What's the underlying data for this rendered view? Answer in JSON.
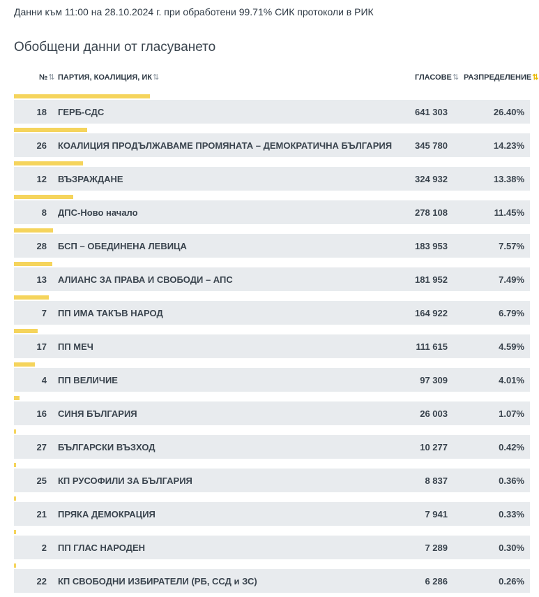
{
  "meta_text": "Данни към 11:00 на 28.10.2024 г. при обработени 99.71% СИК протоколи в РИК",
  "title": "Обобщени данни от гласуването",
  "headers": {
    "num": "№",
    "party": "ПАРТИЯ, КОАЛИЦИЯ, ИК",
    "votes": "ГЛАСОВЕ",
    "dist": "РАЗПРЕДЕЛЕНИЕ",
    "sort_icon": "⇅",
    "sort_active_icon": "⇅"
  },
  "bar_color": "#f5d45c",
  "rows": [
    {
      "num": "18",
      "party": "ГЕРБ-СДС",
      "votes": "641 303",
      "pct": "26.40%",
      "share": 0.264
    },
    {
      "num": "26",
      "party": "КОАЛИЦИЯ ПРОДЪЛЖАВАМЕ ПРОМЯНАТА – ДЕМОКРАТИЧНА БЪЛГАРИЯ",
      "votes": "345 780",
      "pct": "14.23%",
      "share": 0.1423
    },
    {
      "num": "12",
      "party": "ВЪЗРАЖДАНЕ",
      "votes": "324 932",
      "pct": "13.38%",
      "share": 0.1338
    },
    {
      "num": "8",
      "party": "ДПС-Ново начало",
      "votes": "278 108",
      "pct": "11.45%",
      "share": 0.1145
    },
    {
      "num": "28",
      "party": "БСП – ОБЕДИНЕНА ЛЕВИЦА",
      "votes": "183 953",
      "pct": "7.57%",
      "share": 0.0757
    },
    {
      "num": "13",
      "party": "АЛИАНС ЗА ПРАВА И СВОБОДИ – АПС",
      "votes": "181 952",
      "pct": "7.49%",
      "share": 0.0749
    },
    {
      "num": "7",
      "party": "ПП ИМА ТАКЪВ НАРОД",
      "votes": "164 922",
      "pct": "6.79%",
      "share": 0.0679
    },
    {
      "num": "17",
      "party": "ПП МЕЧ",
      "votes": "111 615",
      "pct": "4.59%",
      "share": 0.0459
    },
    {
      "num": "4",
      "party": "ПП ВЕЛИЧИЕ",
      "votes": "97 309",
      "pct": "4.01%",
      "share": 0.0401
    },
    {
      "num": "16",
      "party": "СИНЯ БЪЛГАРИЯ",
      "votes": "26 003",
      "pct": "1.07%",
      "share": 0.0107
    },
    {
      "num": "27",
      "party": "БЪЛГАРСКИ ВЪЗХОД",
      "votes": "10 277",
      "pct": "0.42%",
      "share": 0.0042
    },
    {
      "num": "25",
      "party": "КП РУСОФИЛИ ЗА БЪЛГАРИЯ",
      "votes": "8 837",
      "pct": "0.36%",
      "share": 0.0036
    },
    {
      "num": "21",
      "party": "ПРЯКА ДЕМОКРАЦИЯ",
      "votes": "7 941",
      "pct": "0.33%",
      "share": 0.0033
    },
    {
      "num": "2",
      "party": "ПП ГЛАС НАРОДЕН",
      "votes": "7 289",
      "pct": "0.30%",
      "share": 0.003
    },
    {
      "num": "22",
      "party": "КП СВОБОДНИ ИЗБИРАТЕЛИ (РБ, ССД и ЗС)",
      "votes": "6 286",
      "pct": "0.26%",
      "share": 0.0026
    }
  ]
}
